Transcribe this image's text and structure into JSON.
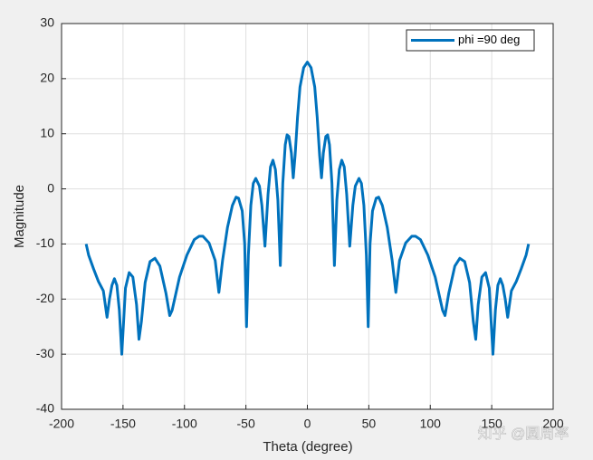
{
  "chart_data": {
    "type": "line",
    "xlabel": "Theta (degree)",
    "ylabel": "Magnitude",
    "x": [
      -180,
      -178,
      -174,
      -170,
      -166,
      -163,
      -161,
      -159,
      -157,
      -155,
      -153,
      -151,
      -148,
      -145,
      -142,
      -139,
      -137,
      -135,
      -132,
      -128,
      -124,
      -120,
      -115,
      -112,
      -110,
      -104,
      -98,
      -92,
      -88,
      -85,
      -80,
      -75,
      -72,
      -69,
      -65,
      -61,
      -58,
      -56,
      -53,
      -51,
      -49.5,
      -48,
      -46,
      -44,
      -42,
      -39,
      -37,
      -34.5,
      -32,
      -30,
      -28,
      -26,
      -24,
      -22,
      -20,
      -18,
      -16.5,
      -15,
      -13,
      -11.5,
      -10,
      -8,
      -6,
      -3,
      0,
      3,
      6,
      8,
      10,
      11.5,
      13,
      15,
      16.5,
      18,
      20,
      22,
      24,
      26,
      28,
      30,
      32,
      34.5,
      37,
      39,
      42,
      44,
      46,
      48,
      49.5,
      51,
      53,
      56,
      58,
      61,
      65,
      69,
      72,
      75,
      80,
      85,
      88,
      92,
      98,
      104,
      110,
      112,
      115,
      120,
      124,
      128,
      132,
      135,
      137,
      139,
      142,
      145,
      148,
      151,
      153,
      155,
      157,
      159,
      161,
      163,
      166,
      170,
      174,
      178,
      180
    ],
    "series": [
      {
        "name": "phi =90 deg",
        "color": "#0072bd",
        "values": [
          -10,
          -12,
          -14.5,
          -16.8,
          -18.5,
          -23.3,
          -20,
          -17.5,
          -16.3,
          -17.5,
          -22,
          -30,
          -18,
          -15.2,
          -16,
          -21,
          -27.3,
          -24,
          -17,
          -13.2,
          -12.6,
          -14,
          -19,
          -23,
          -22,
          -16,
          -12,
          -9.2,
          -8.6,
          -8.6,
          -9.8,
          -13,
          -18.8,
          -13,
          -7,
          -3,
          -1.5,
          -1.7,
          -4,
          -10,
          -25,
          -12,
          -3,
          1,
          1.9,
          0.5,
          -3,
          -10.4,
          -1,
          4,
          5.2,
          3.5,
          -2,
          -13.9,
          1,
          8,
          9.8,
          9.5,
          6.5,
          2,
          6,
          13,
          18.5,
          22,
          23,
          22,
          18.5,
          13,
          6,
          2,
          6.5,
          9.5,
          9.8,
          8,
          1,
          -13.9,
          -2,
          3.5,
          5.2,
          4,
          -1,
          -10.4,
          -3,
          0.5,
          1.9,
          1,
          -3,
          -12,
          -25,
          -10,
          -4,
          -1.7,
          -1.5,
          -3,
          -7,
          -13,
          -18.8,
          -13,
          -9.8,
          -8.6,
          -8.6,
          -9.2,
          -12,
          -16,
          -22,
          -23,
          -19,
          -14,
          -12.6,
          -13.2,
          -17,
          -24,
          -27.3,
          -21,
          -16,
          -15.2,
          -18,
          -30,
          -22,
          -17.5,
          -16.3,
          -17.5,
          -20,
          -23.3,
          -18.5,
          -16.8,
          -14.5,
          -12,
          -10
        ]
      }
    ],
    "xlim": [
      -200,
      200
    ],
    "xticks": [
      -200,
      -150,
      -100,
      -50,
      0,
      50,
      100,
      150,
      200
    ],
    "ylim": [
      -40,
      30
    ],
    "yticks": [
      -40,
      -30,
      -20,
      -10,
      0,
      10,
      20,
      30
    ],
    "grid": true,
    "legend": "top-right",
    "watermark": "知乎 @圆周率"
  }
}
